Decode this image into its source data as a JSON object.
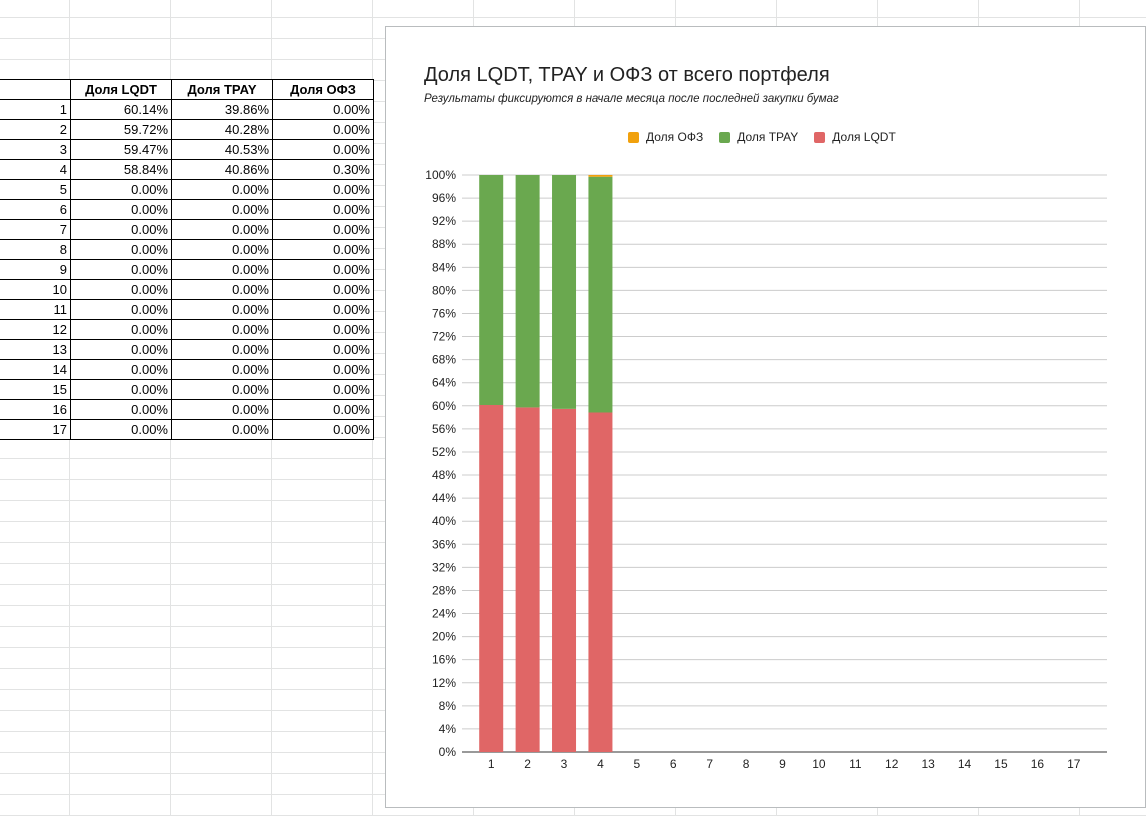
{
  "sheet": {
    "headers": [
      "",
      "Доля LQDT",
      "Доля TPAY",
      "Доля ОФЗ"
    ],
    "rows": [
      [
        "1",
        "60.14%",
        "39.86%",
        "0.00%"
      ],
      [
        "2",
        "59.72%",
        "40.28%",
        "0.00%"
      ],
      [
        "3",
        "59.47%",
        "40.53%",
        "0.00%"
      ],
      [
        "4",
        "58.84%",
        "40.86%",
        "0.30%"
      ],
      [
        "5",
        "0.00%",
        "0.00%",
        "0.00%"
      ],
      [
        "6",
        "0.00%",
        "0.00%",
        "0.00%"
      ],
      [
        "7",
        "0.00%",
        "0.00%",
        "0.00%"
      ],
      [
        "8",
        "0.00%",
        "0.00%",
        "0.00%"
      ],
      [
        "9",
        "0.00%",
        "0.00%",
        "0.00%"
      ],
      [
        "10",
        "0.00%",
        "0.00%",
        "0.00%"
      ],
      [
        "11",
        "0.00%",
        "0.00%",
        "0.00%"
      ],
      [
        "12",
        "0.00%",
        "0.00%",
        "0.00%"
      ],
      [
        "13",
        "0.00%",
        "0.00%",
        "0.00%"
      ],
      [
        "14",
        "0.00%",
        "0.00%",
        "0.00%"
      ],
      [
        "15",
        "0.00%",
        "0.00%",
        "0.00%"
      ],
      [
        "16",
        "0.00%",
        "0.00%",
        "0.00%"
      ],
      [
        "17",
        "0.00%",
        "0.00%",
        "0.00%"
      ]
    ]
  },
  "chart_data": {
    "type": "bar",
    "stacked": "percent",
    "title": "Доля LQDT, TPAY и ОФЗ от всего портфеля",
    "subtitle": "Результаты фиксируются в начале месяца после последней закупки бумаг",
    "xlabel": "",
    "ylabel": "",
    "categories": [
      "1",
      "2",
      "3",
      "4",
      "5",
      "6",
      "7",
      "8",
      "9",
      "10",
      "11",
      "12",
      "13",
      "14",
      "15",
      "16",
      "17"
    ],
    "legend_position": "top",
    "legend_order": [
      "Доля ОФЗ",
      "Доля TPAY",
      "Доля LQDT"
    ],
    "ylim": [
      0,
      100
    ],
    "ytick_step": 4,
    "yticks": [
      "0%",
      "4%",
      "8%",
      "12%",
      "16%",
      "20%",
      "24%",
      "28%",
      "32%",
      "36%",
      "40%",
      "44%",
      "48%",
      "52%",
      "56%",
      "60%",
      "64%",
      "68%",
      "72%",
      "76%",
      "80%",
      "84%",
      "88%",
      "92%",
      "96%",
      "100%"
    ],
    "grid": true,
    "series": [
      {
        "name": "Доля LQDT",
        "color": "#e06666",
        "values": [
          60.14,
          59.72,
          59.47,
          58.84,
          0,
          0,
          0,
          0,
          0,
          0,
          0,
          0,
          0,
          0,
          0,
          0,
          0
        ]
      },
      {
        "name": "Доля TPAY",
        "color": "#6aa84f",
        "values": [
          39.86,
          40.28,
          40.53,
          40.86,
          0,
          0,
          0,
          0,
          0,
          0,
          0,
          0,
          0,
          0,
          0,
          0,
          0
        ]
      },
      {
        "name": "Доля ОФЗ",
        "color": "#f1a10d",
        "values": [
          0,
          0,
          0,
          0.3,
          0,
          0,
          0,
          0,
          0,
          0,
          0,
          0,
          0,
          0,
          0,
          0,
          0
        ]
      }
    ]
  }
}
